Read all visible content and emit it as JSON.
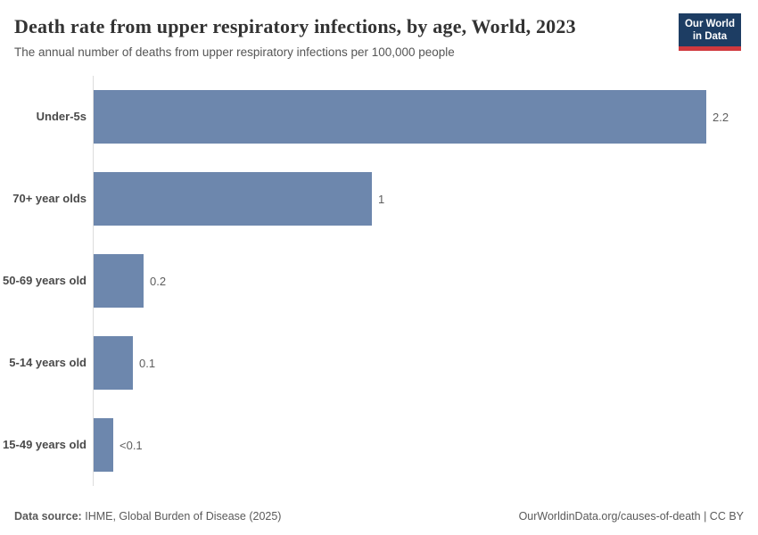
{
  "header": {
    "logo": {
      "line1": "Our World",
      "line2": "in Data"
    }
  },
  "chart_data": {
    "type": "bar",
    "orientation": "horizontal",
    "title": "Death rate from upper respiratory infections, by age, World, 2023",
    "subtitle": "The annual number of deaths from upper respiratory infections per 100,000 people",
    "categories": [
      "Under-5s",
      "70+ year olds",
      "50-69 years old",
      "5-14 years old",
      "15-49 years old"
    ],
    "values": [
      2.2,
      1.0,
      0.18,
      0.14,
      0.07
    ],
    "value_labels": [
      "2.2",
      "1",
      "0.2",
      "0.1",
      "<0.1"
    ],
    "xlabel": "",
    "ylabel": "",
    "xlim": [
      0,
      2.2
    ],
    "grid": false,
    "legend": false,
    "bar_color": "#6d87ad",
    "axis_line_color": "#dcdcdc"
  },
  "footer": {
    "source_label": "Data source:",
    "source_value": "IHME, Global Burden of Disease (2025)",
    "attribution": "OurWorldinData.org/causes-of-death | CC BY"
  }
}
